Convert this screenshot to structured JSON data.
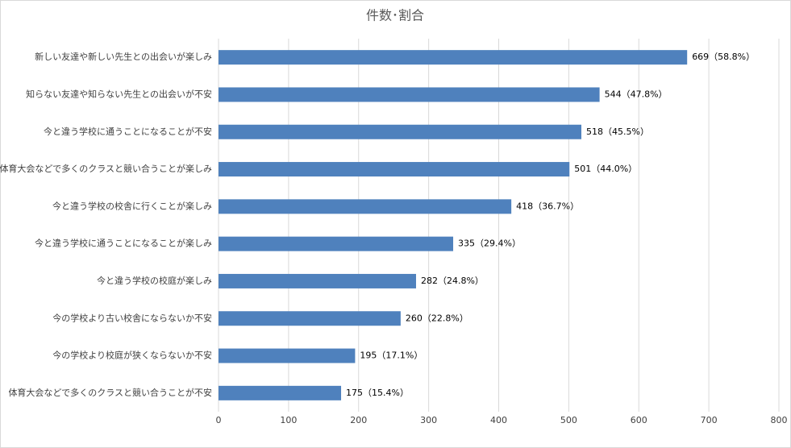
{
  "chart_data": {
    "type": "barh",
    "title": "件数･割合",
    "categories": [
      "新しい友達や新しい先生との出会いが楽しみ",
      "知らない友達や知らない先生との出会いが不安",
      "今と違う学校に通うことになることが不安",
      "体育大会などで多くのクラスと競い合うことが楽しみ",
      "今と違う学校の校舎に行くことが楽しみ",
      "今と違う学校に通うことになることが楽しみ",
      "今と違う学校の校庭が楽しみ",
      "今の学校より古い校舎にならないか不安",
      "今の学校より校庭が狭くならないか不安",
      "体育大会などで多くのクラスと競い合うことが不安"
    ],
    "values": [
      669,
      544,
      518,
      501,
      418,
      335,
      282,
      260,
      195,
      175
    ],
    "value_labels": [
      "669（58.8%）",
      "544（47.8%）",
      "518（45.5%）",
      "501（44.0%）",
      "418（36.7%）",
      "335（29.4%）",
      "282（24.8%）",
      "260（22.8%）",
      "195（17.1%）",
      "175（15.4%）"
    ],
    "color": "#4f81bd",
    "xlim": [
      0,
      800
    ],
    "xticks": [
      0,
      100,
      200,
      300,
      400,
      500,
      600,
      700,
      800
    ],
    "grid": true
  }
}
